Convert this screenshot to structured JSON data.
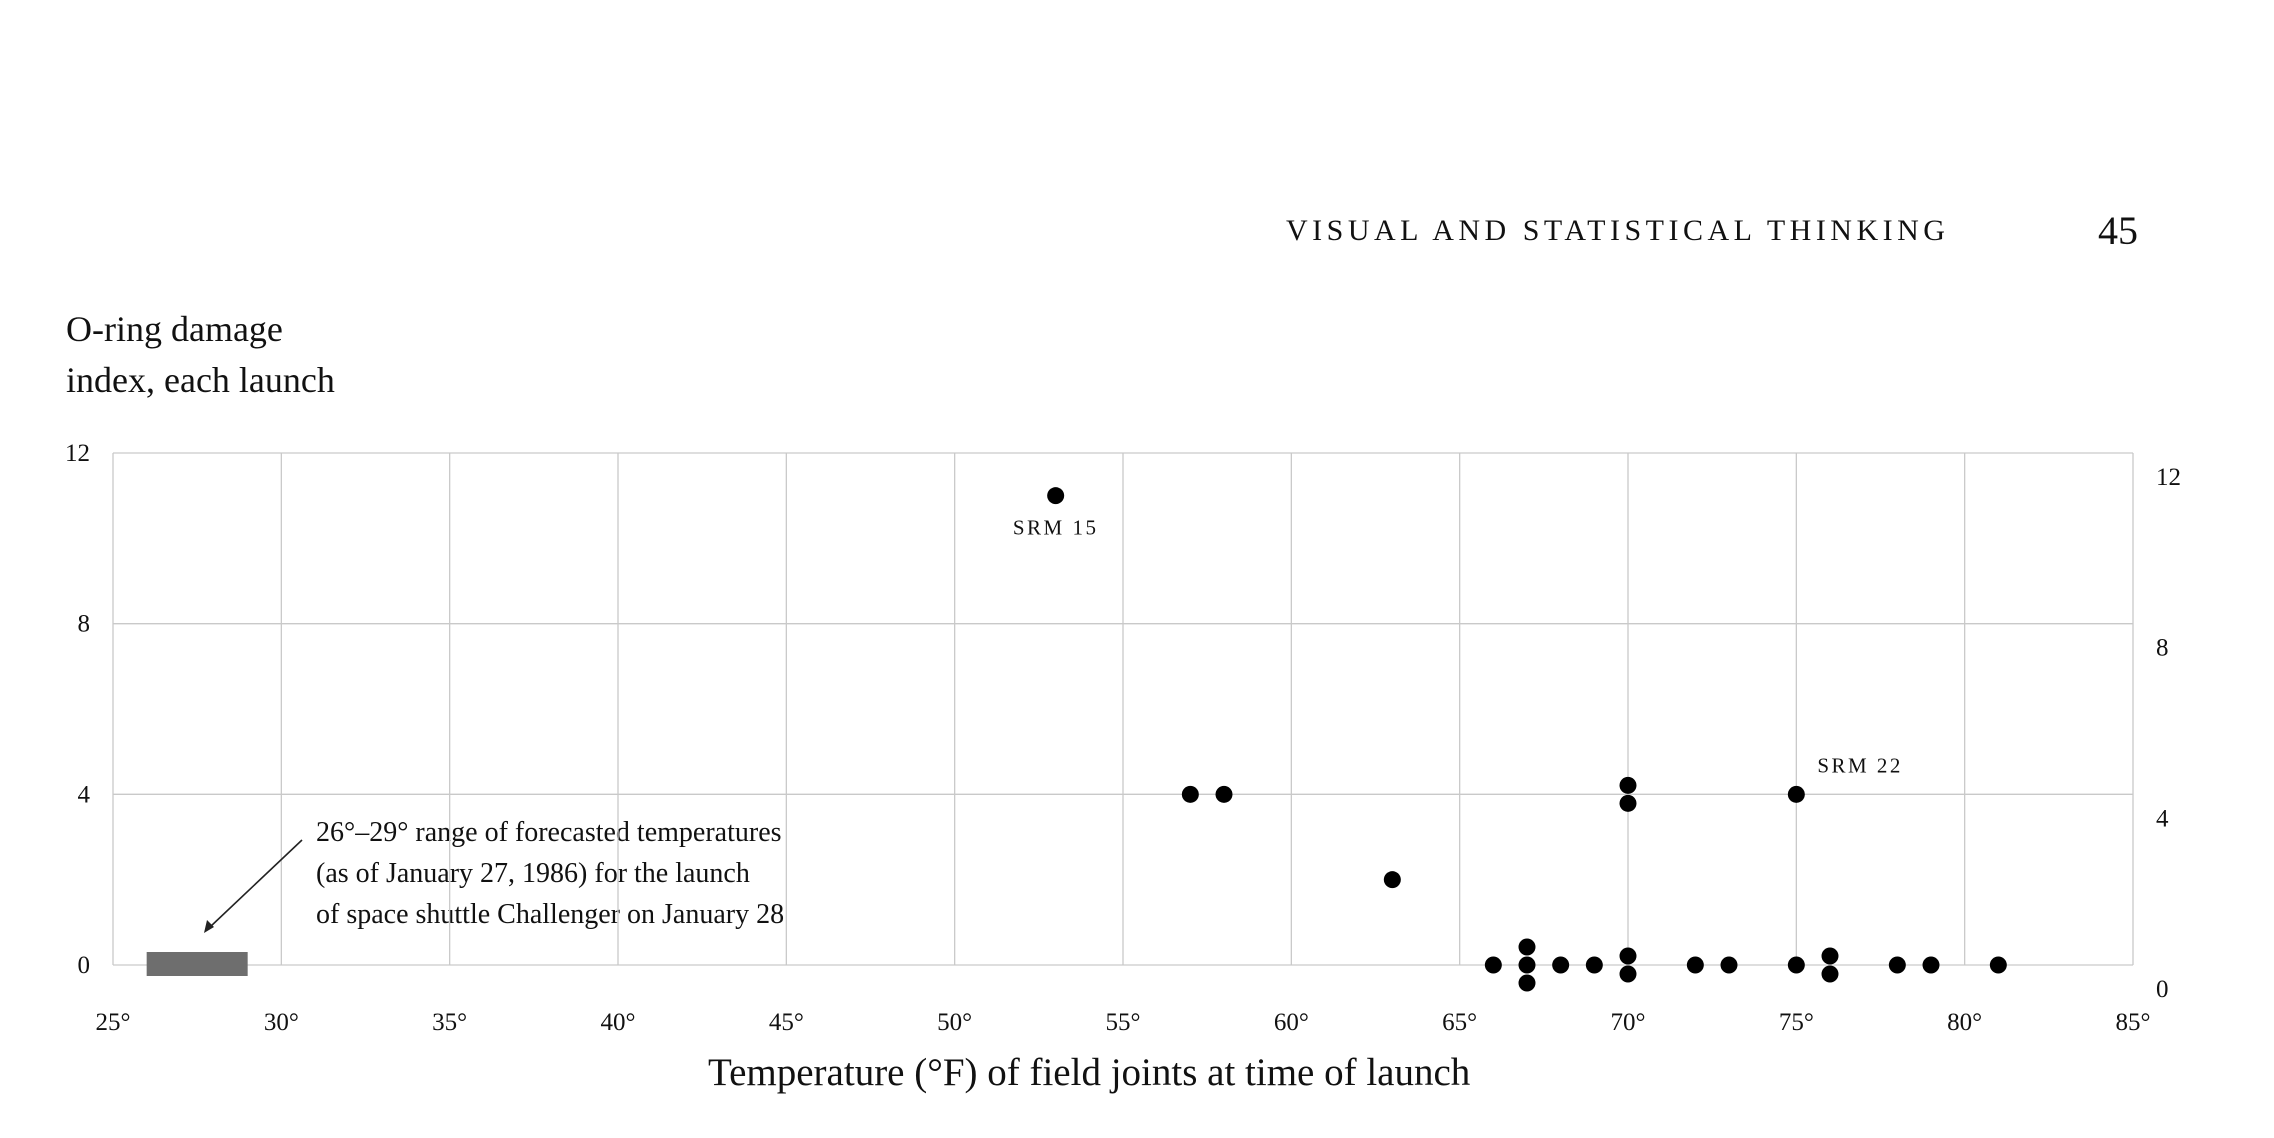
{
  "header": {
    "running_title": "VISUAL AND STATISTICAL THINKING",
    "page_number": "45"
  },
  "chart_data": {
    "type": "scatter",
    "ylabel_lines": [
      "O-ring damage",
      "index, each launch"
    ],
    "xlabel": "Temperature (°F) of field joints at time of launch",
    "xlim": [
      25,
      85
    ],
    "ylim": [
      0,
      12
    ],
    "x_ticks": [
      "25°",
      "30°",
      "35°",
      "40°",
      "45°",
      "50°",
      "55°",
      "60°",
      "65°",
      "70°",
      "75°",
      "80°",
      "85°"
    ],
    "y_ticks_left": [
      "12",
      "8",
      "4",
      "0"
    ],
    "y_ticks_right": [
      "12",
      "8",
      "4",
      "0"
    ],
    "grid": true,
    "points": [
      {
        "x": 53,
        "y": 11
      },
      {
        "x": 57,
        "y": 4
      },
      {
        "x": 58,
        "y": 4
      },
      {
        "x": 63,
        "y": 2
      },
      {
        "x": 66,
        "y": 0
      },
      {
        "x": 67,
        "y": 0
      },
      {
        "x": 67,
        "y": 0
      },
      {
        "x": 67,
        "y": 0
      },
      {
        "x": 68,
        "y": 0
      },
      {
        "x": 69,
        "y": 0
      },
      {
        "x": 70,
        "y": 4
      },
      {
        "x": 70,
        "y": 4
      },
      {
        "x": 70,
        "y": 0
      },
      {
        "x": 70,
        "y": 0
      },
      {
        "x": 72,
        "y": 0
      },
      {
        "x": 73,
        "y": 0
      },
      {
        "x": 75,
        "y": 4
      },
      {
        "x": 75,
        "y": 0
      },
      {
        "x": 76,
        "y": 0
      },
      {
        "x": 76,
        "y": 0
      },
      {
        "x": 78,
        "y": 0
      },
      {
        "x": 79,
        "y": 0
      },
      {
        "x": 81,
        "y": 0
      }
    ],
    "point_labels": [
      {
        "text": "SRM 15",
        "x": 53,
        "y": 11
      },
      {
        "text": "SRM 22",
        "x": 75,
        "y": 4
      }
    ],
    "forecast_range": {
      "from": 26,
      "to": 29
    },
    "annotation_lines": [
      "26°–29° range of forecasted temperatures",
      "(as of January 27, 1986) for the launch",
      "of space shuttle Challenger on January 28"
    ]
  }
}
